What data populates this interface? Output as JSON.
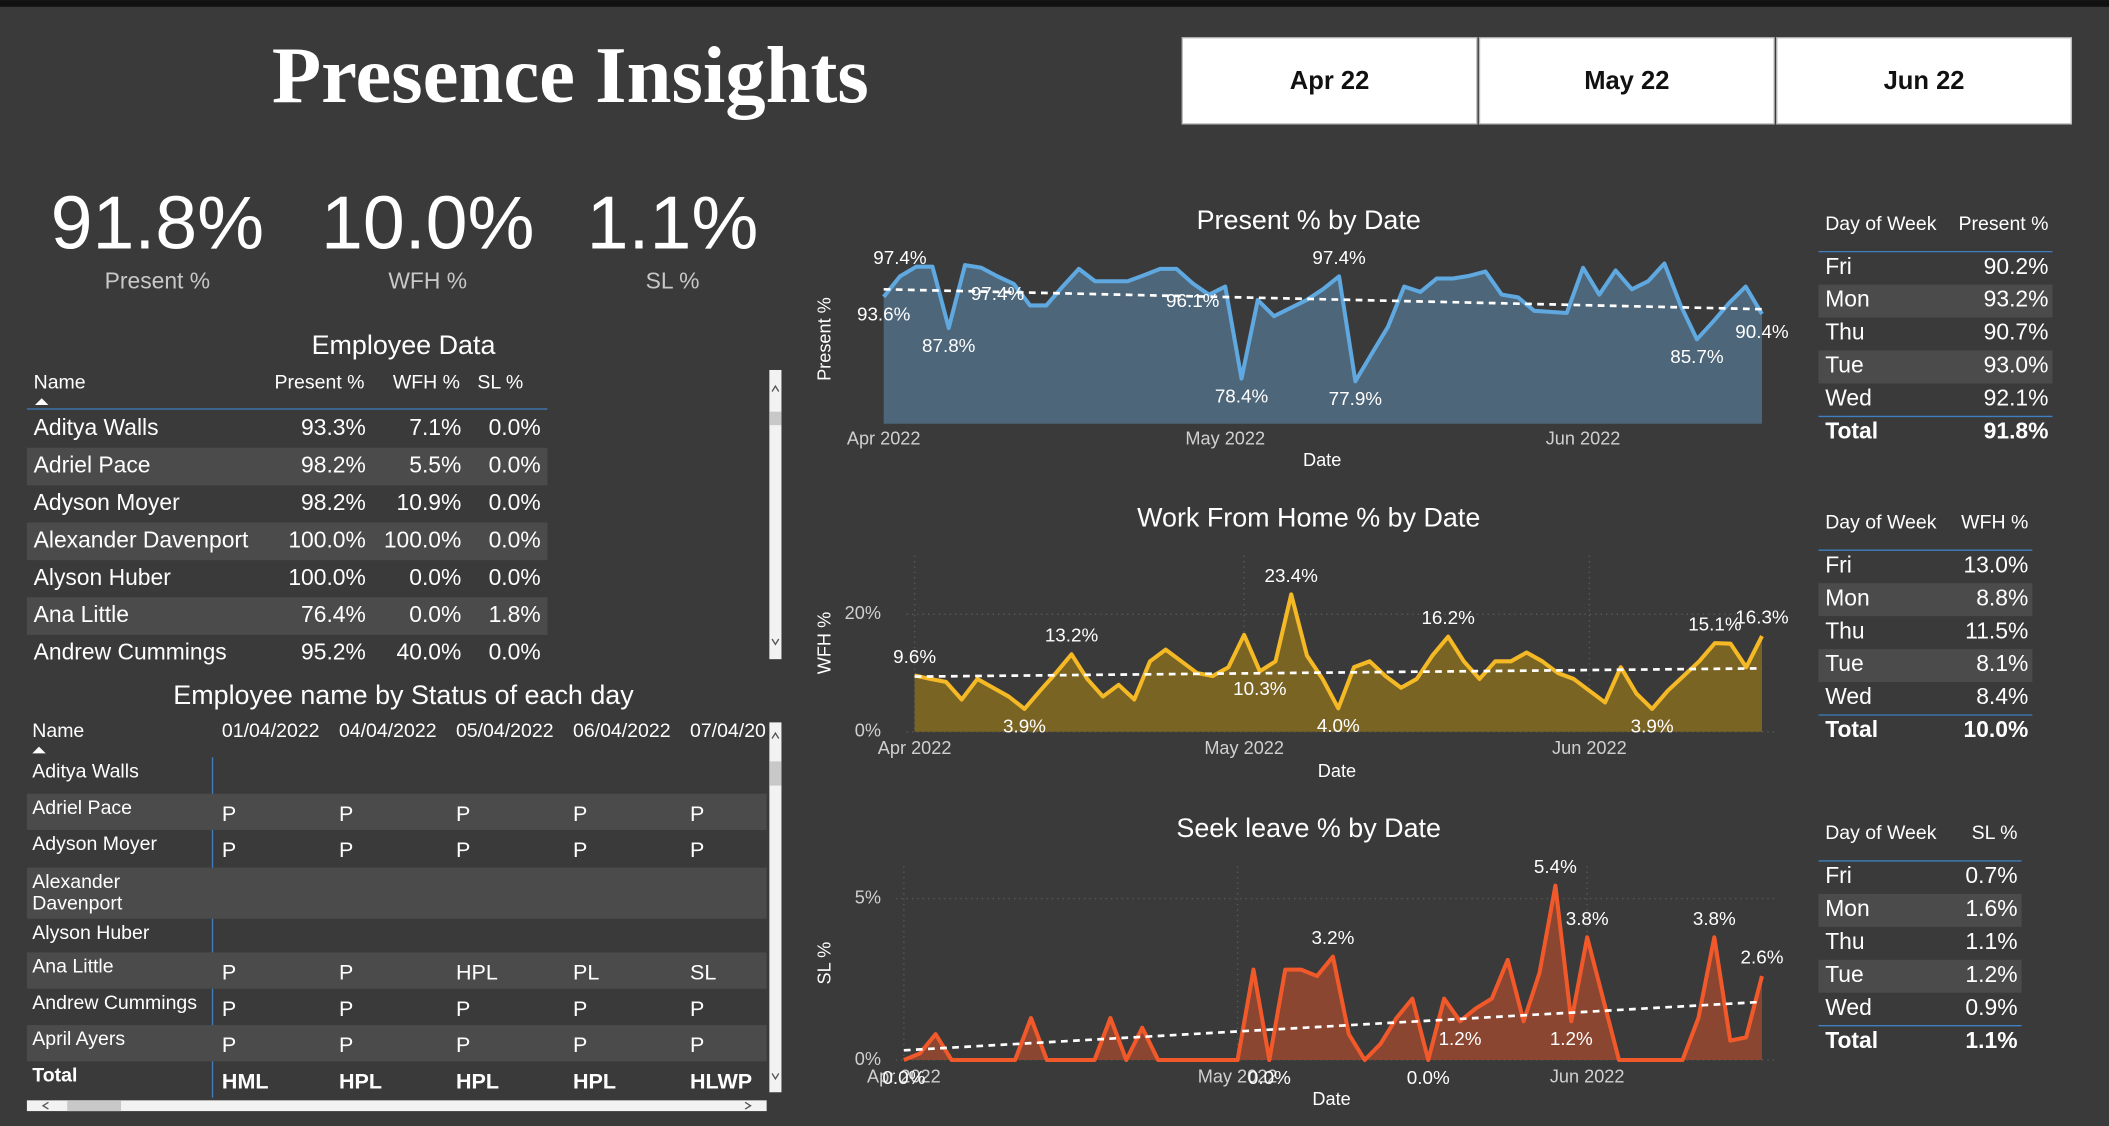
{
  "header": {
    "title": "Presence Insights",
    "slicers": [
      "Apr 22",
      "May 22",
      "Jun 22"
    ]
  },
  "kpis": [
    {
      "value": "91.8%",
      "label": "Present %"
    },
    {
      "value": "10.0%",
      "label": "WFH %"
    },
    {
      "value": "1.1%",
      "label": "SL %"
    }
  ],
  "employee_table": {
    "title": "Employee Data",
    "columns": [
      "Name",
      "Present %",
      "WFH %",
      "SL %"
    ],
    "rows": [
      [
        "Aditya Walls",
        "93.3%",
        "7.1%",
        "0.0%"
      ],
      [
        "Adriel Pace",
        "98.2%",
        "5.5%",
        "0.0%"
      ],
      [
        "Adyson Moyer",
        "98.2%",
        "10.9%",
        "0.0%"
      ],
      [
        "Alexander Davenport",
        "100.0%",
        "100.0%",
        "0.0%"
      ],
      [
        "Alyson Huber",
        "100.0%",
        "0.0%",
        "0.0%"
      ],
      [
        "Ana Little",
        "76.4%",
        "0.0%",
        "1.8%"
      ],
      [
        "Andrew Cummings",
        "95.2%",
        "40.0%",
        "0.0%"
      ]
    ]
  },
  "status_table": {
    "title": "Employee name by Status of each day",
    "columns": [
      "Name",
      "01/04/2022",
      "04/04/2022",
      "05/04/2022",
      "06/04/2022",
      "07/04/20"
    ],
    "rows": [
      {
        "name": "Aditya Walls",
        "statuses": []
      },
      {
        "name": "Adriel Pace",
        "statuses": [
          "P",
          "P",
          "P",
          "P",
          "P"
        ]
      },
      {
        "name": "Adyson Moyer",
        "statuses": [
          "P",
          "P",
          "P",
          "P",
          "P"
        ]
      },
      {
        "name": "Alexander Davenport",
        "statuses": []
      },
      {
        "name": "Alyson Huber",
        "statuses": []
      },
      {
        "name": "Ana Little",
        "statuses": [
          "P",
          "P",
          "HPL",
          "PL",
          "SL"
        ]
      },
      {
        "name": "Andrew Cummings",
        "statuses": [
          "P",
          "P",
          "P",
          "P",
          "P"
        ]
      },
      {
        "name": "April Ayers",
        "statuses": [
          "P",
          "P",
          "P",
          "P",
          "P"
        ]
      }
    ],
    "total": {
      "name": "Total",
      "statuses": [
        "HML",
        "HPL",
        "HPL",
        "HPL",
        "HLWP"
      ]
    }
  },
  "chart_data": [
    {
      "type": "area",
      "title": "Present % by Date",
      "x_label": "Date",
      "y_label": "Present %",
      "categories": [
        "Apr 2022",
        null,
        null,
        null,
        null,
        null,
        null,
        null,
        null,
        null,
        null,
        null,
        null,
        null,
        null,
        null,
        null,
        null,
        null,
        null,
        null,
        "May 2022",
        null,
        null,
        null,
        null,
        null,
        null,
        null,
        null,
        null,
        null,
        null,
        null,
        null,
        null,
        null,
        null,
        null,
        null,
        null,
        null,
        null,
        "Jun 2022",
        null,
        null,
        null,
        null,
        null,
        null,
        null,
        null,
        null,
        null,
        null
      ],
      "values": [
        93.6,
        97.4,
        99.2,
        99.2,
        87.8,
        99.5,
        99.0,
        97.4,
        96.0,
        92.0,
        92.0,
        95.5,
        98.8,
        96.5,
        96.5,
        96.5,
        97.6,
        98.8,
        98.8,
        96.1,
        94.0,
        95.5,
        78.4,
        93.0,
        90.0,
        91.5,
        93.0,
        95.0,
        97.4,
        77.9,
        83.0,
        88.0,
        95.5,
        94.5,
        97.0,
        97.0,
        97.5,
        98.3,
        94.0,
        93.5,
        91.0,
        90.8,
        90.6,
        99.0,
        94.0,
        98.5,
        95.0,
        96.5,
        99.8,
        92.0,
        85.7,
        89.0,
        92.5,
        95.5,
        90.4
      ],
      "value_labels": [
        "93.6%",
        "97.4%",
        null,
        null,
        "87.8%",
        null,
        null,
        "97.4%",
        null,
        null,
        null,
        null,
        null,
        null,
        null,
        null,
        null,
        null,
        null,
        "96.1%",
        null,
        null,
        "78.4%",
        null,
        null,
        null,
        null,
        null,
        "97.4%",
        "77.9%",
        null,
        null,
        null,
        null,
        null,
        null,
        null,
        null,
        null,
        null,
        null,
        null,
        null,
        null,
        null,
        null,
        null,
        null,
        null,
        null,
        "85.7%",
        null,
        null,
        null,
        "90.4%"
      ],
      "trend": [
        95.0,
        91.3
      ],
      "color": "#5fa8e0",
      "fill_color": "#4d6679",
      "ylim": [
        70,
        100
      ],
      "grid": false
    },
    {
      "type": "area",
      "title": "Work From Home % by Date",
      "x_label": "Date",
      "y_label": "WFH %",
      "categories": [
        "Apr 2022",
        null,
        null,
        null,
        null,
        null,
        null,
        null,
        null,
        null,
        null,
        null,
        null,
        null,
        null,
        null,
        null,
        null,
        null,
        null,
        null,
        "May 2022",
        null,
        null,
        null,
        null,
        null,
        null,
        null,
        null,
        null,
        null,
        null,
        null,
        null,
        null,
        null,
        null,
        null,
        null,
        null,
        null,
        null,
        "Jun 2022",
        null,
        null,
        null,
        null,
        null,
        null,
        null,
        null,
        null,
        null,
        null
      ],
      "values": [
        9.6,
        9.0,
        8.5,
        5.5,
        9.0,
        7.5,
        6.0,
        3.9,
        7.0,
        10.0,
        13.2,
        9.0,
        6.0,
        8.0,
        5.5,
        12.0,
        14.0,
        12.0,
        10.0,
        9.5,
        11.0,
        16.5,
        10.3,
        12.0,
        23.4,
        13.0,
        9.0,
        4.0,
        11.0,
        12.0,
        9.5,
        7.5,
        9.0,
        13.0,
        16.2,
        12.0,
        9.0,
        12.0,
        12.0,
        13.5,
        12.0,
        10.0,
        9.0,
        7.0,
        5.0,
        11.0,
        6.5,
        3.9,
        7.0,
        9.5,
        12.0,
        15.1,
        15.0,
        11.0,
        16.3
      ],
      "value_labels": [
        "9.6%",
        null,
        null,
        null,
        null,
        null,
        null,
        "3.9%",
        null,
        null,
        "13.2%",
        null,
        null,
        null,
        null,
        null,
        null,
        null,
        null,
        null,
        null,
        null,
        "10.3%",
        null,
        "23.4%",
        null,
        null,
        "4.0%",
        null,
        null,
        null,
        null,
        null,
        null,
        "16.2%",
        null,
        null,
        null,
        null,
        null,
        null,
        null,
        null,
        null,
        null,
        null,
        null,
        "3.9%",
        null,
        null,
        null,
        "15.1%",
        null,
        null,
        "16.3%"
      ],
      "trend": [
        9.4,
        10.8
      ],
      "color": "#f5b925",
      "fill_color": "#7a6424",
      "ylim": [
        0,
        30
      ],
      "yticks": [
        {
          "value": 0,
          "label": "0%"
        },
        {
          "value": 20,
          "label": "20%"
        }
      ],
      "grid": true
    },
    {
      "type": "area",
      "title": "Seek leave % by Date",
      "x_label": "Date",
      "y_label": "SL %",
      "categories": [
        "Apr 2022",
        null,
        null,
        null,
        null,
        null,
        null,
        null,
        null,
        null,
        null,
        null,
        null,
        null,
        null,
        null,
        null,
        null,
        null,
        null,
        null,
        "May 2022",
        null,
        null,
        null,
        null,
        null,
        null,
        null,
        null,
        null,
        null,
        null,
        null,
        null,
        null,
        null,
        null,
        null,
        null,
        null,
        null,
        null,
        "Jun 2022",
        null,
        null,
        null,
        null,
        null,
        null,
        null,
        null,
        null,
        null,
        null
      ],
      "values": [
        0.0,
        0.2,
        0.8,
        0,
        0,
        0,
        0,
        0,
        1.3,
        0,
        0,
        0,
        0,
        1.3,
        0,
        1.0,
        0,
        0,
        0,
        0,
        0,
        0,
        2.8,
        0.0,
        2.8,
        2.8,
        2.6,
        3.2,
        0.8,
        0,
        0.5,
        1.3,
        1.9,
        0.0,
        1.9,
        1.2,
        1.6,
        1.9,
        3.1,
        1.2,
        2.7,
        5.4,
        1.2,
        3.8,
        1.9,
        0,
        0,
        0,
        0,
        0,
        1.3,
        3.8,
        0.6,
        0.7,
        2.6
      ],
      "value_labels": [
        "0.0%",
        null,
        null,
        null,
        null,
        null,
        null,
        null,
        null,
        null,
        null,
        null,
        null,
        null,
        null,
        null,
        null,
        null,
        null,
        null,
        null,
        null,
        null,
        "0.0%",
        null,
        null,
        null,
        "3.2%",
        null,
        null,
        null,
        null,
        null,
        "0.0%",
        null,
        "1.2%",
        null,
        null,
        null,
        null,
        null,
        "5.4%",
        "1.2%",
        "3.8%",
        null,
        null,
        null,
        null,
        null,
        null,
        null,
        "3.8%",
        null,
        null,
        "2.6%"
      ],
      "trend": [
        0.3,
        1.8
      ],
      "color": "#f2592a",
      "fill_color": "#8a4630",
      "ylim": [
        0,
        6
      ],
      "yticks": [
        {
          "value": 0,
          "label": "0%"
        },
        {
          "value": 5,
          "label": "5%"
        }
      ],
      "grid": true
    }
  ],
  "day_tables": [
    {
      "columns": [
        "Day of Week",
        "Present %"
      ],
      "rows": [
        [
          "Fri",
          "90.2%"
        ],
        [
          "Mon",
          "93.2%"
        ],
        [
          "Thu",
          "90.7%"
        ],
        [
          "Tue",
          "93.0%"
        ],
        [
          "Wed",
          "92.1%"
        ]
      ],
      "total": [
        "Total",
        "91.8%"
      ]
    },
    {
      "columns": [
        "Day of Week",
        "WFH %"
      ],
      "rows": [
        [
          "Fri",
          "13.0%"
        ],
        [
          "Mon",
          "8.8%"
        ],
        [
          "Thu",
          "11.5%"
        ],
        [
          "Tue",
          "8.1%"
        ],
        [
          "Wed",
          "8.4%"
        ]
      ],
      "total": [
        "Total",
        "10.0%"
      ]
    },
    {
      "columns": [
        "Day of Week",
        "SL %"
      ],
      "rows": [
        [
          "Fri",
          "0.7%"
        ],
        [
          "Mon",
          "1.6%"
        ],
        [
          "Thu",
          "1.1%"
        ],
        [
          "Tue",
          "1.2%"
        ],
        [
          "Wed",
          "0.9%"
        ]
      ],
      "total": [
        "Total",
        "1.1%"
      ]
    }
  ]
}
